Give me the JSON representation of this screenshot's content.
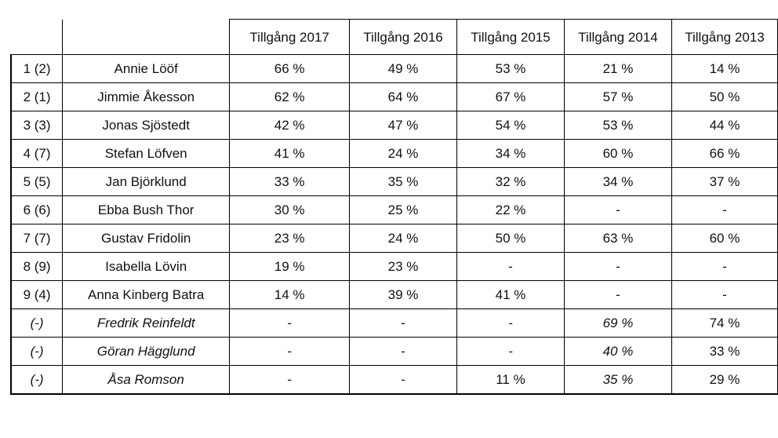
{
  "table": {
    "headers": [
      "Tillgång 2017",
      "Tillgång 2016",
      "Tillgång 2015",
      "Tillgång 2014",
      "Tillgång 2013"
    ],
    "rows": [
      {
        "rank": "1 (2)",
        "name": "Annie Lööf",
        "v": [
          "66 %",
          "49 %",
          "53 %",
          "21 %",
          "14 %"
        ],
        "italic": [
          false,
          false,
          false,
          false,
          false,
          false
        ]
      },
      {
        "rank": "2 (1)",
        "name": "Jimmie Åkesson",
        "v": [
          "62 %",
          "64 %",
          "67 %",
          "57 %",
          "50 %"
        ],
        "italic": [
          false,
          false,
          false,
          false,
          false,
          false
        ]
      },
      {
        "rank": "3 (3)",
        "name": "Jonas Sjöstedt",
        "v": [
          "42 %",
          "47 %",
          "54 %",
          "53 %",
          "44 %"
        ],
        "italic": [
          false,
          false,
          false,
          false,
          false,
          false
        ]
      },
      {
        "rank": "4 (7)",
        "name": "Stefan Löfven",
        "v": [
          "41 %",
          "24 %",
          "34 %",
          "60 %",
          "66 %"
        ],
        "italic": [
          false,
          false,
          false,
          false,
          false,
          false
        ]
      },
      {
        "rank": "5 (5)",
        "name": "Jan Björklund",
        "v": [
          "33 %",
          "35 %",
          "32 %",
          "34 %",
          "37 %"
        ],
        "italic": [
          false,
          false,
          false,
          false,
          false,
          false
        ]
      },
      {
        "rank": "6 (6)",
        "name": "Ebba Bush Thor",
        "v": [
          "30 %",
          "25 %",
          "22 %",
          "-",
          "-"
        ],
        "italic": [
          false,
          false,
          false,
          false,
          false,
          false
        ]
      },
      {
        "rank": "7 (7)",
        "name": "Gustav Fridolin",
        "v": [
          "23 %",
          "24 %",
          "50 %",
          "63 %",
          "60 %"
        ],
        "italic": [
          false,
          false,
          false,
          false,
          false,
          false
        ]
      },
      {
        "rank": "8 (9)",
        "name": "Isabella Lövin",
        "v": [
          "19 %",
          "23 %",
          "-",
          "-",
          "-"
        ],
        "italic": [
          false,
          false,
          false,
          false,
          false,
          false
        ]
      },
      {
        "rank": "9 (4)",
        "name": "Anna Kinberg Batra",
        "v": [
          "14 %",
          "39 %",
          "41 %",
          "-",
          "-"
        ],
        "italic": [
          false,
          false,
          false,
          false,
          false,
          false
        ]
      },
      {
        "rank": "(-)",
        "name": "Fredrik Reinfeldt",
        "v": [
          "-",
          "-",
          "-",
          "69 %",
          "74 %"
        ],
        "italic": [
          true,
          true,
          false,
          false,
          true,
          true
        ]
      },
      {
        "rank": "(-)",
        "name": "Göran Hägglund",
        "v": [
          "-",
          "-",
          "-",
          "40 %",
          "33 %"
        ],
        "italic": [
          true,
          true,
          false,
          false,
          true,
          true
        ]
      },
      {
        "rank": "(-)",
        "name": "Åsa Romson",
        "v": [
          "-",
          "-",
          "11 %",
          "35 %",
          "29 %"
        ],
        "italic": [
          true,
          true,
          false,
          true,
          false,
          true
        ]
      }
    ]
  }
}
